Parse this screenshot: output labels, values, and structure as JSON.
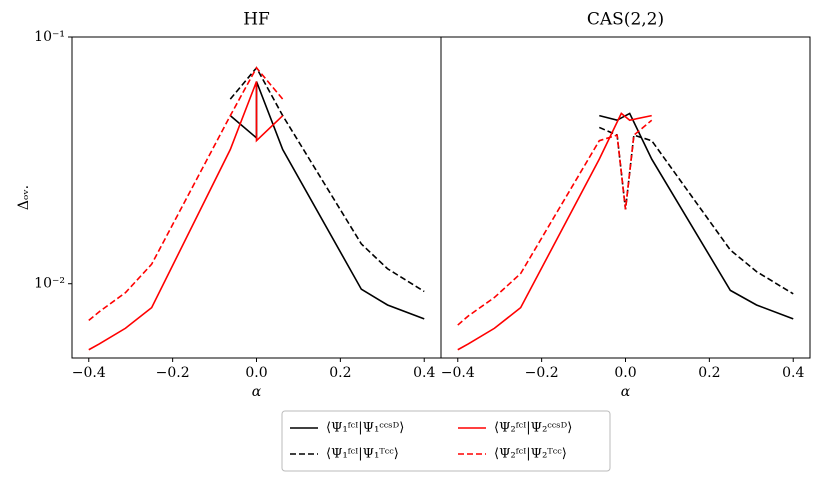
{
  "chart_data": [
    {
      "type": "line",
      "title": "HF",
      "xlabel": "α",
      "ylabel": "Δₒᵥ.",
      "yscale": "log",
      "xlim": [
        -0.44,
        0.44
      ],
      "ylim": [
        0.005,
        0.1
      ],
      "xticks": [
        {
          "value": -0.4,
          "label": "−0.4"
        },
        {
          "value": -0.2,
          "label": "−0.2"
        },
        {
          "value": 0,
          "label": "0.0"
        },
        0.2,
        0.4
      ],
      "yticks": [
        {
          "value": 0.1,
          "label": "10⁻¹"
        },
        {
          "value": 0.01,
          "label": "10⁻²"
        }
      ],
      "series": [
        {
          "name": "⟨Ψ₁ᶠᶜᴵ|Ψ₁ᶜᶜˢᴰ⟩",
          "color": "#000000",
          "linestyle": "solid",
          "x": [
            -0.0625,
            0,
            0,
            0.0625,
            0.25,
            0.3125,
            0.4
          ],
          "values": [
            0.048,
            0.039,
            0.066,
            0.035,
            0.0095,
            0.0082,
            0.0072
          ]
        },
        {
          "name": "⟨Ψ₁ᶠᶜᴵ|Ψ₁ᵀᶜᶜ⟩",
          "color": "#000000",
          "linestyle": "dashed",
          "x": [
            -0.0625,
            0,
            0.0625,
            0.25,
            0.3125,
            0.4
          ],
          "values": [
            0.056,
            0.075,
            0.048,
            0.0145,
            0.0115,
            0.0093
          ]
        },
        {
          "name": "⟨Ψ₂ᶠᶜᴵ|Ψ₂ᶜᶜˢᴰ⟩",
          "color": "#ff0000",
          "linestyle": "solid",
          "x": [
            -0.4,
            -0.375,
            -0.3125,
            -0.25,
            -0.0625,
            0,
            0,
            0.0625
          ],
          "values": [
            0.0054,
            0.0057,
            0.0066,
            0.008,
            0.035,
            0.066,
            0.038,
            0.048
          ]
        },
        {
          "name": "⟨Ψ₂ᶠᶜᴵ|Ψ₂ᵀᶜᶜ⟩",
          "color": "#ff0000",
          "linestyle": "dashed",
          "x": [
            -0.4,
            -0.375,
            -0.3125,
            -0.25,
            -0.0625,
            0,
            0.0625
          ],
          "values": [
            0.0071,
            0.0077,
            0.0092,
            0.012,
            0.048,
            0.075,
            0.056
          ]
        }
      ]
    },
    {
      "type": "line",
      "title": "CAS(2,2)",
      "xlabel": "α",
      "yscale": "log",
      "xlim": [
        -0.44,
        0.44
      ],
      "ylim": [
        0.005,
        0.1
      ],
      "xticks": [
        {
          "value": -0.4,
          "label": "−0.4"
        },
        {
          "value": -0.2,
          "label": "−0.2"
        },
        {
          "value": 0,
          "label": "0.0"
        },
        0.2,
        0.4
      ],
      "series": [
        {
          "color": "#000000",
          "linestyle": "solid",
          "x": [
            -0.0625,
            -0.02,
            0.01,
            0.0625,
            0.25,
            0.3125,
            0.4
          ],
          "values": [
            0.048,
            0.046,
            0.049,
            0.032,
            0.0094,
            0.0082,
            0.0072
          ]
        },
        {
          "color": "#000000",
          "linestyle": "dashed",
          "x": [
            -0.0625,
            -0.02,
            0,
            0.02,
            0.0625,
            0.25,
            0.3125,
            0.4
          ],
          "values": [
            0.043,
            0.04,
            0.02,
            0.04,
            0.038,
            0.0137,
            0.0112,
            0.0091
          ]
        },
        {
          "color": "#ff0000",
          "linestyle": "solid",
          "x": [
            -0.4,
            -0.375,
            -0.3125,
            -0.25,
            -0.0625,
            -0.01,
            0.01,
            0.0625
          ],
          "values": [
            0.0054,
            0.0057,
            0.0066,
            0.008,
            0.032,
            0.049,
            0.046,
            0.048
          ]
        },
        {
          "color": "#ff0000",
          "linestyle": "dashed",
          "x": [
            -0.4,
            -0.375,
            -0.3125,
            -0.25,
            -0.0625,
            -0.02,
            0,
            0.02,
            0.0625
          ],
          "values": [
            0.0068,
            0.0074,
            0.0088,
            0.011,
            0.038,
            0.04,
            0.02,
            0.04,
            0.046
          ]
        }
      ]
    }
  ]
}
